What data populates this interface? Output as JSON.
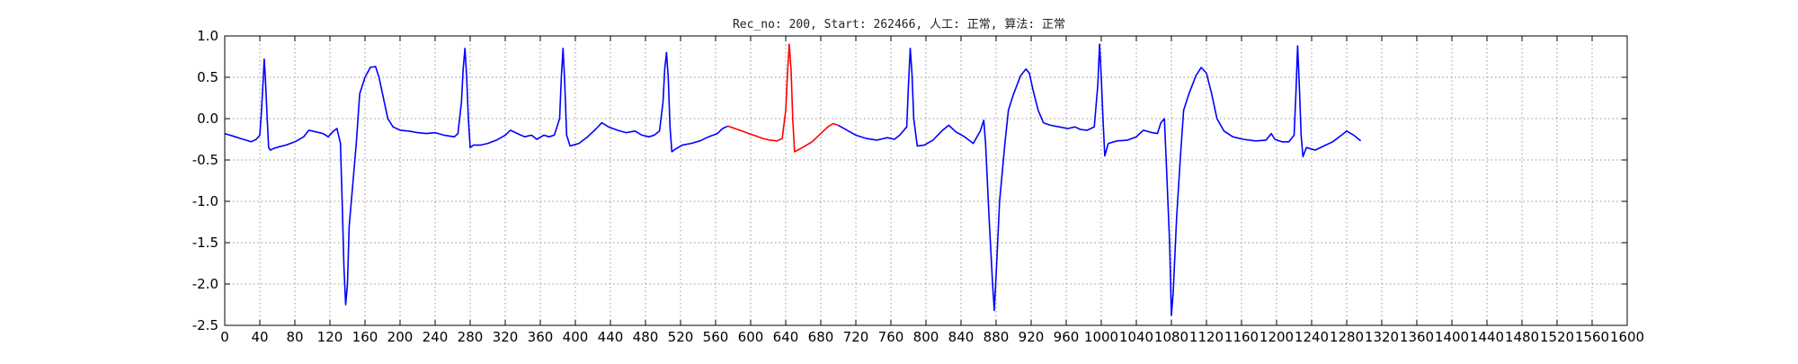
{
  "chart_data": {
    "type": "line",
    "title": "Rec_no: 200, Start: 262466, 人工: 正常, 算法: 正常",
    "xlabel": "",
    "ylabel": "",
    "xlim": [
      0,
      1600
    ],
    "ylim": [
      -2.5,
      1.0
    ],
    "grid": true,
    "yticks": [
      1.0,
      0.5,
      0.0,
      -0.5,
      -1.0,
      -1.5,
      -2.0,
      -2.5
    ],
    "ytick_labels": [
      "1.0",
      "0.5",
      "0.0",
      "-0.5",
      "-1.0",
      "-1.5",
      "-2.0",
      "-2.5"
    ],
    "xticks": [
      0,
      40,
      80,
      120,
      160,
      200,
      240,
      280,
      320,
      360,
      400,
      440,
      480,
      520,
      560,
      600,
      640,
      680,
      720,
      760,
      800,
      840,
      880,
      920,
      960,
      1000,
      1040,
      1080,
      1120,
      1160,
      1200,
      1240,
      1280,
      1320,
      1360,
      1400,
      1440,
      1480,
      1520,
      1560,
      1600
    ],
    "xtick_labels": [
      "0",
      "40",
      "80",
      "120",
      "160",
      "200",
      "240",
      "280",
      "320",
      "360",
      "400",
      "440",
      "480",
      "520",
      "560",
      "600",
      "640",
      "680",
      "720",
      "760",
      "800",
      "840",
      "880",
      "920",
      "960",
      "1000",
      "1040",
      "1080",
      "1120",
      "1160",
      "1200",
      "1240",
      "1280",
      "1320",
      "1360",
      "1400",
      "1440",
      "1480",
      "1520",
      "1560",
      "1600"
    ],
    "series": [
      {
        "color": "#0000ff",
        "points": [
          [
            0,
            -0.18
          ],
          [
            6,
            -0.2
          ],
          [
            12,
            -0.22
          ],
          [
            18,
            -0.24
          ],
          [
            24,
            -0.26
          ],
          [
            30,
            -0.28
          ],
          [
            36,
            -0.25
          ],
          [
            40,
            -0.2
          ],
          [
            42,
            0.1
          ],
          [
            44,
            0.5
          ],
          [
            45,
            0.72
          ],
          [
            46,
            0.55
          ],
          [
            48,
            0.1
          ],
          [
            50,
            -0.35
          ],
          [
            52,
            -0.38
          ],
          [
            56,
            -0.36
          ],
          [
            62,
            -0.34
          ],
          [
            70,
            -0.32
          ],
          [
            80,
            -0.28
          ],
          [
            90,
            -0.22
          ],
          [
            96,
            -0.14
          ],
          [
            104,
            -0.16
          ],
          [
            112,
            -0.18
          ],
          [
            118,
            -0.22
          ],
          [
            124,
            -0.15
          ],
          [
            128,
            -0.12
          ],
          [
            132,
            -0.3
          ],
          [
            134,
            -1.0
          ],
          [
            136,
            -1.8
          ],
          [
            138,
            -2.25
          ],
          [
            140,
            -2.0
          ],
          [
            142,
            -1.3
          ],
          [
            146,
            -0.8
          ],
          [
            150,
            -0.3
          ],
          [
            154,
            0.3
          ],
          [
            160,
            0.5
          ],
          [
            166,
            0.62
          ],
          [
            172,
            0.63
          ],
          [
            176,
            0.5
          ],
          [
            180,
            0.3
          ],
          [
            186,
            0.0
          ],
          [
            192,
            -0.1
          ],
          [
            200,
            -0.14
          ],
          [
            210,
            -0.15
          ],
          [
            220,
            -0.17
          ],
          [
            230,
            -0.18
          ],
          [
            240,
            -0.17
          ],
          [
            250,
            -0.2
          ],
          [
            262,
            -0.22
          ],
          [
            266,
            -0.18
          ],
          [
            270,
            0.2
          ],
          [
            272,
            0.6
          ],
          [
            274,
            0.85
          ],
          [
            276,
            0.5
          ],
          [
            278,
            0.0
          ],
          [
            280,
            -0.35
          ],
          [
            284,
            -0.32
          ],
          [
            292,
            -0.32
          ],
          [
            300,
            -0.3
          ],
          [
            310,
            -0.26
          ],
          [
            320,
            -0.2
          ],
          [
            326,
            -0.14
          ],
          [
            334,
            -0.18
          ],
          [
            342,
            -0.22
          ],
          [
            350,
            -0.2
          ],
          [
            356,
            -0.25
          ],
          [
            364,
            -0.2
          ],
          [
            370,
            -0.22
          ],
          [
            376,
            -0.2
          ],
          [
            382,
            0.0
          ],
          [
            384,
            0.5
          ],
          [
            386,
            0.85
          ],
          [
            388,
            0.4
          ],
          [
            390,
            -0.2
          ],
          [
            394,
            -0.33
          ],
          [
            404,
            -0.3
          ],
          [
            414,
            -0.22
          ],
          [
            424,
            -0.12
          ],
          [
            430,
            -0.05
          ],
          [
            438,
            -0.1
          ],
          [
            448,
            -0.14
          ],
          [
            458,
            -0.17
          ],
          [
            468,
            -0.15
          ],
          [
            476,
            -0.2
          ],
          [
            484,
            -0.22
          ],
          [
            490,
            -0.2
          ],
          [
            496,
            -0.15
          ],
          [
            500,
            0.2
          ],
          [
            502,
            0.6
          ],
          [
            504,
            0.8
          ],
          [
            506,
            0.5
          ],
          [
            508,
            -0.1
          ],
          [
            510,
            -0.4
          ],
          [
            514,
            -0.37
          ],
          [
            522,
            -0.32
          ],
          [
            532,
            -0.3
          ],
          [
            542,
            -0.27
          ],
          [
            552,
            -0.22
          ],
          [
            562,
            -0.18
          ],
          [
            568,
            -0.12
          ],
          [
            574,
            -0.09
          ]
        ]
      },
      {
        "color": "#ff0000",
        "points": [
          [
            574,
            -0.09
          ],
          [
            582,
            -0.12
          ],
          [
            590,
            -0.15
          ],
          [
            598,
            -0.18
          ],
          [
            606,
            -0.21
          ],
          [
            614,
            -0.24
          ],
          [
            622,
            -0.26
          ],
          [
            630,
            -0.27
          ],
          [
            636,
            -0.24
          ],
          [
            640,
            0.1
          ],
          [
            642,
            0.55
          ],
          [
            644,
            0.9
          ],
          [
            646,
            0.6
          ],
          [
            648,
            0.0
          ],
          [
            650,
            -0.4
          ],
          [
            654,
            -0.38
          ],
          [
            662,
            -0.33
          ],
          [
            670,
            -0.28
          ],
          [
            680,
            -0.18
          ],
          [
            688,
            -0.1
          ],
          [
            694,
            -0.06
          ],
          [
            700,
            -0.08
          ]
        ]
      },
      {
        "color": "#0000ff",
        "points": [
          [
            700,
            -0.08
          ],
          [
            710,
            -0.14
          ],
          [
            720,
            -0.2
          ],
          [
            732,
            -0.24
          ],
          [
            744,
            -0.26
          ],
          [
            756,
            -0.23
          ],
          [
            764,
            -0.25
          ],
          [
            770,
            -0.2
          ],
          [
            778,
            -0.1
          ],
          [
            780,
            0.4
          ],
          [
            782,
            0.85
          ],
          [
            784,
            0.55
          ],
          [
            786,
            0.0
          ],
          [
            790,
            -0.33
          ],
          [
            798,
            -0.32
          ],
          [
            808,
            -0.26
          ],
          [
            818,
            -0.15
          ],
          [
            826,
            -0.08
          ],
          [
            834,
            -0.16
          ],
          [
            844,
            -0.22
          ],
          [
            854,
            -0.3
          ],
          [
            862,
            -0.15
          ],
          [
            866,
            -0.02
          ],
          [
            868,
            -0.3
          ],
          [
            872,
            -1.2
          ],
          [
            876,
            -2.0
          ],
          [
            878,
            -2.32
          ],
          [
            880,
            -1.9
          ],
          [
            884,
            -1.0
          ],
          [
            890,
            -0.3
          ],
          [
            894,
            0.1
          ],
          [
            900,
            0.3
          ],
          [
            908,
            0.52
          ],
          [
            914,
            0.6
          ],
          [
            918,
            0.55
          ],
          [
            922,
            0.35
          ],
          [
            928,
            0.1
          ],
          [
            934,
            -0.05
          ],
          [
            942,
            -0.08
          ],
          [
            952,
            -0.1
          ],
          [
            962,
            -0.12
          ],
          [
            970,
            -0.1
          ],
          [
            976,
            -0.13
          ],
          [
            984,
            -0.14
          ],
          [
            992,
            -0.1
          ],
          [
            996,
            0.4
          ],
          [
            998,
            0.9
          ],
          [
            1000,
            0.5
          ],
          [
            1002,
            0.0
          ],
          [
            1004,
            -0.45
          ],
          [
            1008,
            -0.3
          ],
          [
            1018,
            -0.27
          ],
          [
            1030,
            -0.26
          ],
          [
            1040,
            -0.22
          ],
          [
            1048,
            -0.14
          ],
          [
            1058,
            -0.17
          ],
          [
            1064,
            -0.18
          ],
          [
            1068,
            -0.05
          ],
          [
            1072,
            0.0
          ],
          [
            1074,
            -0.5
          ],
          [
            1078,
            -1.5
          ],
          [
            1080,
            -2.38
          ],
          [
            1082,
            -2.1
          ],
          [
            1086,
            -1.2
          ],
          [
            1090,
            -0.5
          ],
          [
            1094,
            0.1
          ],
          [
            1100,
            0.3
          ],
          [
            1108,
            0.52
          ],
          [
            1114,
            0.62
          ],
          [
            1120,
            0.55
          ],
          [
            1126,
            0.3
          ],
          [
            1132,
            0.0
          ],
          [
            1140,
            -0.15
          ],
          [
            1150,
            -0.22
          ],
          [
            1162,
            -0.25
          ],
          [
            1176,
            -0.27
          ],
          [
            1188,
            -0.26
          ],
          [
            1194,
            -0.18
          ],
          [
            1198,
            -0.25
          ],
          [
            1206,
            -0.28
          ],
          [
            1214,
            -0.28
          ],
          [
            1220,
            -0.2
          ],
          [
            1222,
            0.3
          ],
          [
            1224,
            0.88
          ],
          [
            1226,
            0.4
          ],
          [
            1228,
            -0.2
          ],
          [
            1230,
            -0.46
          ],
          [
            1234,
            -0.35
          ],
          [
            1244,
            -0.38
          ],
          [
            1254,
            -0.33
          ],
          [
            1264,
            -0.28
          ],
          [
            1274,
            -0.2
          ],
          [
            1280,
            -0.15
          ],
          [
            1288,
            -0.2
          ],
          [
            1296,
            -0.27
          ]
        ]
      }
    ]
  }
}
